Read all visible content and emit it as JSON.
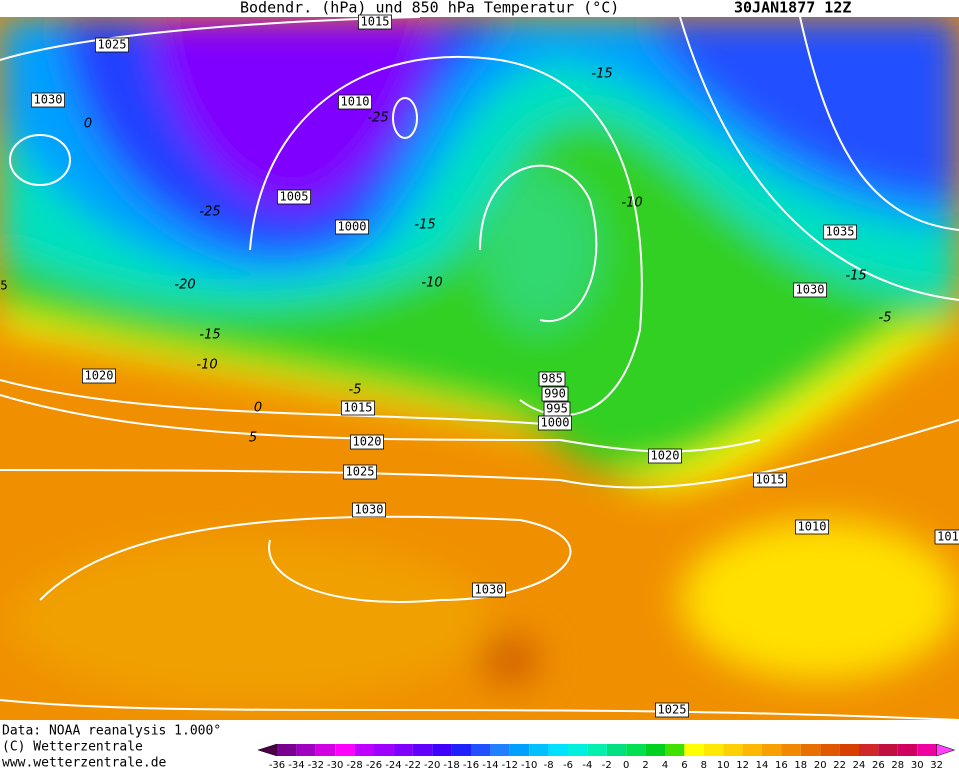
{
  "header": {
    "title": "Bodendr. (hPa) und 850 hPa Temperatur (°C)",
    "date": "30JAN1877 12Z"
  },
  "footer": {
    "source": "Data: NOAA reanalysis 1.000°",
    "copyright": "(C) Wetterzentrale",
    "url": "www.wetterzentrale.de"
  },
  "colorbar": {
    "ticks": [
      -36,
      -34,
      -32,
      -30,
      -28,
      -26,
      -24,
      -22,
      -20,
      -18,
      -16,
      -14,
      -12,
      -10,
      -8,
      -6,
      -4,
      -2,
      0,
      2,
      4,
      6,
      8,
      10,
      12,
      14,
      16,
      18,
      20,
      22,
      24,
      26,
      28,
      30,
      32
    ],
    "colors": [
      "#4b0048",
      "#7a0090",
      "#a000c0",
      "#d000e0",
      "#ff00ff",
      "#c000ff",
      "#a000ff",
      "#8000ff",
      "#6000ff",
      "#4000ff",
      "#2020ff",
      "#2050ff",
      "#2080ff",
      "#00a0ff",
      "#00c0ff",
      "#00e0ff",
      "#00f0e0",
      "#00f0b0",
      "#00e080",
      "#00e050",
      "#00d020",
      "#40e000",
      "#ffff00",
      "#ffe800",
      "#ffd000",
      "#ffb800",
      "#f8a000",
      "#f08800",
      "#e87000",
      "#e05800",
      "#d84000",
      "#d02828",
      "#c01040",
      "#d00060",
      "#f000a0",
      "#ff40ff"
    ]
  },
  "isobar_labels": [
    "1015",
    "1025",
    "1030",
    "1010",
    "1005",
    "1000",
    "985",
    "990",
    "995",
    "1000",
    "1015",
    "1020",
    "1020",
    "1025",
    "1030",
    "1030",
    "1035",
    "1030",
    "1020",
    "1015",
    "1010",
    "101",
    "1025",
    "5"
  ],
  "temperature_labels": [
    -15,
    -25,
    -25,
    -20,
    -15,
    -10,
    -5,
    0,
    5,
    -15,
    -10,
    -10,
    -15,
    0,
    -5
  ]
}
